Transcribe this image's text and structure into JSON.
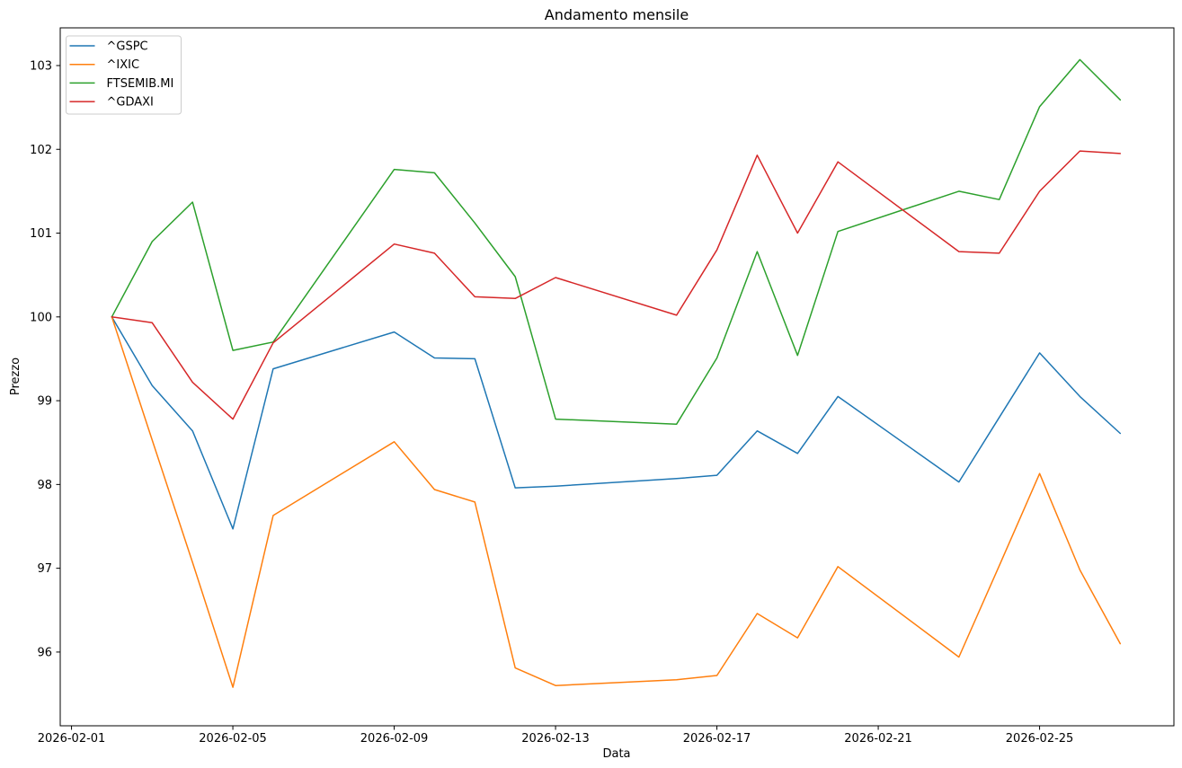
{
  "chart_data": {
    "type": "line",
    "title": "Andamento mensile",
    "xlabel": "Data",
    "ylabel": "Prezzo",
    "grid": false,
    "legend_position": "upper-left",
    "background_color": "#ffffff",
    "spine_color": "#000000",
    "legend_border_color": "#cccccc",
    "x_dates": [
      "2026-02-02",
      "2026-02-03",
      "2026-02-04",
      "2026-02-05",
      "2026-02-06",
      "2026-02-09",
      "2026-02-10",
      "2026-02-11",
      "2026-02-12",
      "2026-02-13",
      "2026-02-16",
      "2026-02-17",
      "2026-02-18",
      "2026-02-19",
      "2026-02-20",
      "2026-02-23",
      "2026-02-24",
      "2026-02-25",
      "2026-02-26",
      "2026-02-27"
    ],
    "x_day_numbers": [
      2,
      3,
      4,
      5,
      6,
      9,
      10,
      11,
      12,
      13,
      16,
      17,
      18,
      19,
      20,
      23,
      24,
      25,
      26,
      27
    ],
    "xticks": [
      {
        "day": 1,
        "label": "2026-02-01"
      },
      {
        "day": 5,
        "label": "2026-02-05"
      },
      {
        "day": 9,
        "label": "2026-02-09"
      },
      {
        "day": 13,
        "label": "2026-02-13"
      },
      {
        "day": 17,
        "label": "2026-02-17"
      },
      {
        "day": 21,
        "label": "2026-02-21"
      },
      {
        "day": 25,
        "label": "2026-02-25"
      }
    ],
    "yticks": [
      96,
      97,
      98,
      99,
      100,
      101,
      102,
      103
    ],
    "xlim_days": [
      0.72,
      28.33
    ],
    "ylim": [
      95.12,
      103.45
    ],
    "series": [
      {
        "name": "^GSPC",
        "color": "#1f77b4",
        "values": [
          100.0,
          99.18,
          98.64,
          97.47,
          99.38,
          99.82,
          99.51,
          99.5,
          97.96,
          97.98,
          98.07,
          98.11,
          98.64,
          98.37,
          99.05,
          98.03,
          98.8,
          99.57,
          99.05,
          98.61
        ]
      },
      {
        "name": "^IXIC",
        "color": "#ff7f0e",
        "values": [
          100.0,
          98.53,
          97.07,
          95.58,
          97.63,
          98.51,
          97.94,
          97.79,
          95.81,
          95.6,
          95.67,
          95.72,
          96.46,
          96.17,
          97.02,
          95.94,
          97.03,
          98.13,
          96.98,
          96.1
        ]
      },
      {
        "name": "FTSEMIB.MI",
        "color": "#2ca02c",
        "values": [
          100.0,
          100.9,
          101.37,
          99.6,
          99.7,
          101.76,
          101.72,
          101.12,
          100.48,
          98.78,
          98.72,
          99.51,
          100.78,
          99.54,
          101.02,
          101.5,
          101.4,
          102.51,
          103.07,
          102.59
        ]
      },
      {
        "name": "^GDAXI",
        "color": "#d62728",
        "values": [
          100.0,
          99.93,
          99.22,
          98.78,
          99.69,
          100.87,
          100.76,
          100.24,
          100.22,
          100.47,
          100.02,
          100.8,
          101.93,
          101.0,
          101.85,
          100.78,
          100.76,
          101.5,
          101.98,
          101.95
        ]
      }
    ]
  }
}
